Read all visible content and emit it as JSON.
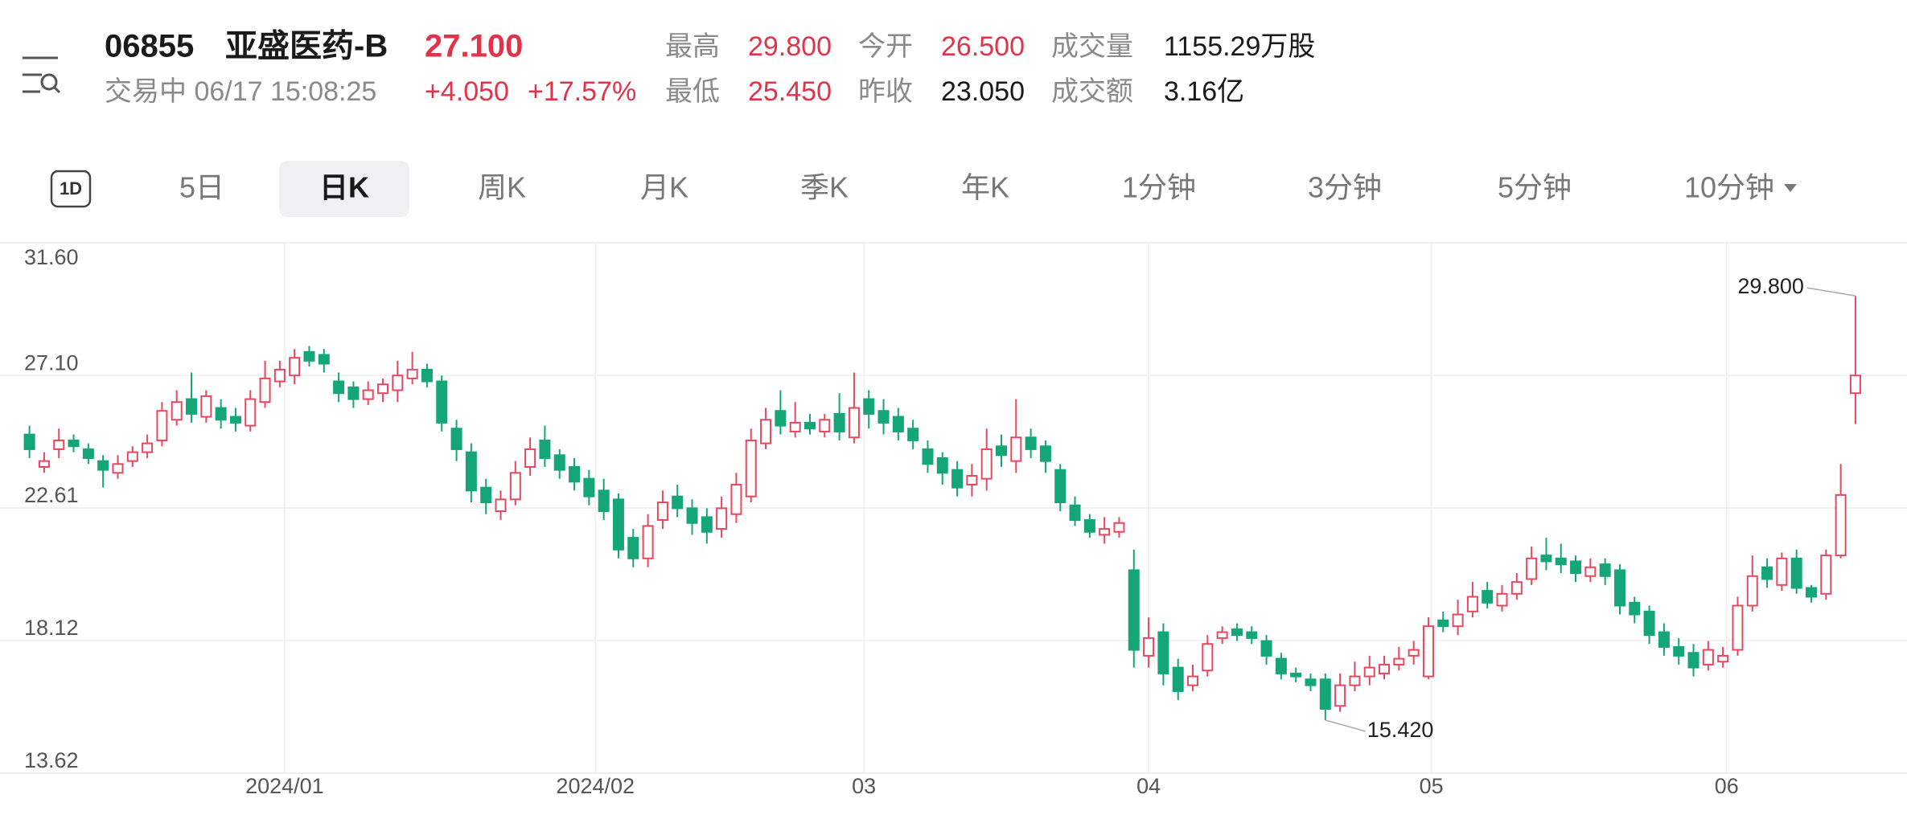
{
  "header": {
    "code": "06855",
    "name": "亚盛医药-B",
    "price": "27.100",
    "status": "交易中 06/17 15:08:25",
    "change": "+4.050",
    "change_percent": "+17.57%",
    "stats": [
      {
        "label": "最高",
        "value": "29.800"
      },
      {
        "label": "今开",
        "value": "26.500"
      },
      {
        "label": "成交量",
        "value": "1155.29万股"
      },
      {
        "label": "最低",
        "value": "25.450"
      },
      {
        "label": "昨收",
        "value": "23.050"
      },
      {
        "label": "成交额",
        "value": "3.16亿"
      }
    ]
  },
  "tabs": {
    "items": [
      "1D",
      "5日",
      "日K",
      "周K",
      "月K",
      "季K",
      "年K",
      "1分钟",
      "3分钟",
      "5分钟",
      "10分钟"
    ],
    "active": 2
  },
  "chart_data": {
    "type": "candlestick",
    "ylim": [
      13.62,
      31.6
    ],
    "yticks": [
      {
        "value": 31.6,
        "label": "31.60"
      },
      {
        "value": 27.1,
        "label": "27.10"
      },
      {
        "value": 22.61,
        "label": "22.61"
      },
      {
        "value": 18.12,
        "label": "18.12"
      },
      {
        "value": 13.62,
        "label": "13.62"
      }
    ],
    "xlim": [
      -2,
      127.5
    ],
    "xticks": [
      {
        "value": 17.33,
        "label": "2024/01"
      },
      {
        "value": 38.43,
        "label": "2024/02"
      },
      {
        "value": 56.67,
        "label": "03"
      },
      {
        "value": 76,
        "label": "04"
      },
      {
        "value": 95.2,
        "label": "05"
      },
      {
        "value": 115.25,
        "label": "06"
      }
    ],
    "grid": true,
    "up_color": "#e8475f",
    "down_color": "#15a678",
    "open": [
      25.1,
      24.0,
      24.6,
      24.9,
      24.6,
      24.2,
      23.8,
      24.2,
      24.5,
      24.9,
      25.6,
      26.3,
      25.7,
      26.0,
      25.7,
      25.4,
      26.2,
      26.9,
      27.1,
      27.9,
      27.8,
      26.9,
      26.7,
      26.3,
      26.5,
      26.6,
      27.0,
      27.3,
      26.9,
      25.3,
      24.5,
      23.3,
      22.5,
      22.9,
      24.0,
      24.9,
      24.4,
      24.0,
      23.6,
      23.2,
      22.9,
      21.6,
      20.9,
      22.2,
      23.0,
      22.6,
      22.3,
      21.9,
      22.4,
      23.0,
      24.8,
      25.9,
      25.2,
      25.5,
      25.2,
      25.8,
      25.0,
      26.3,
      25.9,
      25.7,
      25.3,
      24.6,
      24.3,
      23.9,
      23.4,
      23.6,
      24.7,
      24.2,
      25.0,
      24.7,
      23.9,
      22.7,
      22.2,
      21.7,
      21.8,
      20.5,
      17.6,
      18.4,
      17.2,
      16.6,
      17.1,
      18.2,
      18.5,
      18.4,
      18.1,
      17.5,
      17.0,
      16.8,
      16.8,
      15.9,
      16.6,
      16.9,
      17.0,
      17.3,
      17.6,
      16.9,
      18.8,
      18.6,
      19.1,
      19.8,
      19.3,
      19.7,
      20.2,
      21.0,
      20.9,
      20.8,
      20.3,
      20.7,
      20.5,
      19.4,
      19.1,
      18.4,
      17.9,
      17.7,
      17.3,
      17.4,
      17.8,
      19.3,
      20.6,
      20.0,
      20.9,
      19.9,
      19.7,
      21.0,
      26.5
    ],
    "high": [
      25.4,
      24.5,
      25.3,
      25.1,
      24.8,
      24.4,
      24.4,
      24.7,
      25.1,
      26.2,
      26.6,
      27.2,
      26.6,
      26.3,
      26.0,
      26.6,
      27.6,
      27.6,
      28.0,
      28.1,
      28.0,
      27.2,
      26.9,
      26.9,
      27.0,
      27.6,
      27.9,
      27.5,
      27.1,
      25.6,
      24.8,
      23.6,
      23.2,
      24.2,
      25.0,
      25.4,
      24.6,
      24.3,
      23.9,
      23.6,
      23.1,
      21.9,
      22.4,
      23.2,
      23.4,
      22.9,
      22.6,
      23.0,
      23.8,
      25.3,
      26.0,
      26.6,
      26.2,
      25.8,
      25.8,
      26.5,
      27.2,
      26.6,
      26.3,
      26.0,
      25.6,
      24.9,
      24.5,
      24.2,
      24.1,
      25.3,
      25.1,
      26.3,
      25.3,
      24.9,
      24.1,
      23.0,
      22.4,
      22.3,
      22.3,
      21.2,
      18.9,
      18.7,
      17.5,
      17.3,
      18.3,
      18.6,
      18.7,
      18.6,
      18.3,
      17.7,
      17.2,
      17.0,
      17.0,
      17.0,
      17.4,
      17.6,
      17.6,
      17.9,
      18.1,
      18.9,
      19.1,
      19.5,
      20.1,
      20.1,
      20.0,
      20.4,
      21.3,
      21.6,
      21.4,
      21.0,
      20.9,
      20.9,
      20.7,
      19.6,
      19.3,
      18.7,
      18.2,
      18.0,
      18.1,
      17.9,
      19.6,
      21.0,
      20.9,
      21.1,
      21.2,
      20.0,
      21.2,
      24.1,
      29.8
    ],
    "low": [
      24.3,
      23.8,
      24.3,
      24.5,
      24.1,
      23.3,
      23.6,
      24.0,
      24.3,
      24.7,
      25.4,
      25.5,
      25.5,
      25.3,
      25.2,
      25.2,
      26.0,
      26.7,
      26.8,
      27.4,
      27.2,
      26.2,
      26.0,
      26.1,
      26.2,
      26.2,
      26.8,
      26.7,
      25.2,
      24.2,
      22.8,
      22.4,
      22.2,
      22.7,
      23.7,
      24.0,
      23.6,
      23.2,
      22.7,
      22.2,
      20.9,
      20.6,
      20.6,
      21.9,
      22.3,
      21.7,
      21.4,
      21.6,
      22.1,
      22.8,
      24.6,
      25.1,
      25.0,
      25.1,
      25.0,
      24.9,
      24.8,
      25.3,
      25.1,
      24.9,
      24.6,
      23.8,
      23.4,
      23.0,
      23.0,
      23.2,
      24.0,
      23.8,
      24.3,
      23.8,
      22.5,
      22.0,
      21.6,
      21.4,
      21.6,
      17.2,
      17.2,
      16.6,
      16.1,
      16.4,
      16.9,
      18.0,
      18.1,
      18.0,
      17.3,
      16.8,
      16.7,
      16.4,
      15.42,
      15.7,
      16.4,
      16.6,
      16.8,
      17.1,
      17.3,
      16.8,
      18.4,
      18.3,
      18.9,
      19.2,
      19.1,
      19.5,
      20.0,
      20.5,
      20.4,
      20.1,
      20.1,
      20.0,
      19.0,
      18.7,
      18.0,
      17.6,
      17.3,
      16.9,
      17.1,
      17.2,
      17.6,
      19.1,
      19.9,
      19.8,
      19.7,
      19.4,
      19.5,
      20.9,
      25.45
    ],
    "close": [
      24.6,
      24.2,
      24.9,
      24.7,
      24.3,
      23.9,
      24.1,
      24.5,
      24.8,
      25.9,
      26.2,
      25.8,
      26.4,
      25.6,
      25.5,
      26.3,
      27.0,
      27.3,
      27.7,
      27.6,
      27.5,
      26.5,
      26.3,
      26.6,
      26.8,
      27.1,
      27.3,
      26.9,
      25.5,
      24.6,
      23.2,
      22.8,
      22.9,
      23.8,
      24.6,
      24.3,
      23.9,
      23.5,
      23.0,
      22.5,
      21.2,
      20.9,
      22.0,
      22.8,
      22.6,
      22.1,
      21.8,
      22.6,
      23.4,
      24.9,
      25.6,
      25.4,
      25.5,
      25.3,
      25.6,
      25.2,
      26.0,
      25.8,
      25.5,
      25.2,
      24.9,
      24.1,
      23.8,
      23.3,
      23.7,
      24.6,
      24.4,
      25.0,
      24.6,
      24.2,
      22.8,
      22.2,
      21.8,
      21.9,
      22.1,
      17.8,
      18.2,
      17.0,
      16.4,
      16.9,
      18.0,
      18.4,
      18.3,
      18.2,
      17.6,
      17.0,
      16.9,
      16.6,
      15.8,
      16.6,
      16.9,
      17.2,
      17.3,
      17.5,
      17.8,
      18.6,
      18.6,
      19.0,
      19.6,
      19.4,
      19.7,
      20.1,
      20.9,
      20.8,
      20.7,
      20.4,
      20.6,
      20.3,
      19.3,
      19.0,
      18.3,
      17.9,
      17.6,
      17.2,
      17.8,
      17.6,
      19.3,
      20.3,
      20.2,
      20.9,
      19.9,
      19.6,
      21.0,
      23.05,
      27.1
    ],
    "annotations": [
      {
        "text": "29.800",
        "x": 124,
        "y": 29.8
      },
      {
        "text": "15.420",
        "x": 88,
        "y": 15.42
      }
    ]
  }
}
